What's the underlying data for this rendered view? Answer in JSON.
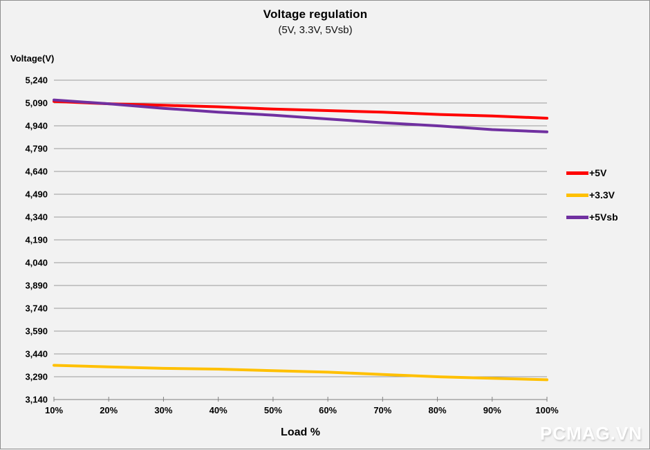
{
  "title": "Voltage regulation",
  "subtitle": "(5V, 3.3V, 5Vsb)",
  "watermark": "PCMAG.VN",
  "colors": {
    "background": "#f2f2f2",
    "border": "#8e8e8e",
    "gridline": "#999999",
    "axis": "#7f7f7f",
    "text": "#000000",
    "series_5v": "#ff0000",
    "series_3v3": "#ffc000",
    "series_5vsb": "#7030a0"
  },
  "chart_data": {
    "type": "line",
    "title": "Voltage regulation",
    "subtitle": "(5V, 3.3V, 5Vsb)",
    "xlabel": "Load %",
    "ylabel": "Voltage(V)",
    "x": [
      10,
      20,
      30,
      40,
      50,
      60,
      70,
      80,
      90,
      100
    ],
    "x_tick_labels": [
      "10%",
      "20%",
      "30%",
      "40%",
      "50%",
      "60%",
      "70%",
      "80%",
      "90%",
      "100%"
    ],
    "y_ticks": [
      3140,
      3290,
      3440,
      3590,
      3740,
      3890,
      4040,
      4190,
      4340,
      4490,
      4640,
      4790,
      4940,
      5090,
      5240
    ],
    "y_tick_labels": [
      "3,140",
      "3,290",
      "3,440",
      "3,590",
      "3,740",
      "3,890",
      "4,040",
      "4,190",
      "4,340",
      "4,490",
      "4,640",
      "4,790",
      "4,940",
      "5,090",
      "5,240"
    ],
    "ylim": [
      3140,
      5240
    ],
    "grid": true,
    "legend_position": "right",
    "series": [
      {
        "name": "+5V",
        "color": "#ff0000",
        "values": [
          5100,
          5085,
          5075,
          5065,
          5050,
          5040,
          5030,
          5015,
          5005,
          4990
        ]
      },
      {
        "name": "+3.3V",
        "color": "#ffc000",
        "values": [
          3365,
          3355,
          3345,
          3340,
          3330,
          3320,
          3305,
          3290,
          3280,
          3270
        ]
      },
      {
        "name": "+5Vsb",
        "color": "#7030a0",
        "values": [
          5110,
          5085,
          5055,
          5030,
          5010,
          4985,
          4960,
          4940,
          4915,
          4900
        ]
      }
    ]
  }
}
